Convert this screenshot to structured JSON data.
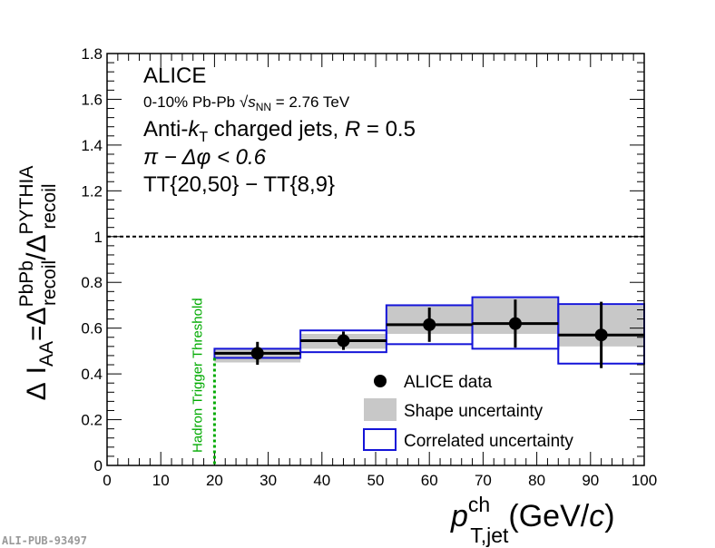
{
  "chart_data": {
    "type": "scatter",
    "title": "",
    "xlabel_main": "p",
    "xlabel_sup": "ch",
    "xlabel_sub": "T,jet",
    "xlabel_unit_open": "(GeV/",
    "xlabel_unit_c": "c",
    "xlabel_unit_close": ")",
    "ylabel": {
      "delta": "Δ",
      "i": "I",
      "aa": "AA",
      "eq": "=Δ",
      "sup1": "PbPb",
      "sub1": "recoil",
      "slash": "/Δ",
      "sup2": "PYTHIA",
      "sub2": "recoil"
    },
    "xlim": [
      0,
      100
    ],
    "ylim": [
      0,
      1.8
    ],
    "x_ticks": [
      "0",
      "10",
      "20",
      "30",
      "40",
      "50",
      "60",
      "70",
      "80",
      "90",
      "100"
    ],
    "y_ticks": [
      "0",
      "0.2",
      "0.4",
      "0.6",
      "0.8",
      "1",
      "1.2",
      "1.4",
      "1.6",
      "1.8"
    ],
    "reference_line_y": 1.0,
    "threshold_x": 20,
    "threshold_label": "Hadron Trigger Threshold",
    "threshold_color": "#00aa00",
    "series": [
      {
        "name": "ALICE data",
        "bins": [
          [
            20,
            36
          ],
          [
            36,
            52
          ],
          [
            52,
            68
          ],
          [
            68,
            84
          ],
          [
            84,
            100
          ]
        ],
        "x": [
          28,
          44,
          60,
          76,
          92
        ],
        "y": [
          0.49,
          0.545,
          0.615,
          0.62,
          0.57
        ],
        "stat_err": [
          0.05,
          0.04,
          0.075,
          0.105,
          0.145
        ],
        "shape_unc": [
          [
            0.45,
            0.51
          ],
          [
            0.51,
            0.575
          ],
          [
            0.575,
            0.7
          ],
          [
            0.575,
            0.73
          ],
          [
            0.52,
            0.7
          ]
        ],
        "corr_unc": [
          [
            0.47,
            0.51
          ],
          [
            0.495,
            0.59
          ],
          [
            0.53,
            0.7
          ],
          [
            0.51,
            0.735
          ],
          [
            0.445,
            0.705
          ]
        ]
      }
    ],
    "annotations": {
      "experiment": "ALICE",
      "system_text": "0-10% Pb-Pb ",
      "sqrt_s": "s",
      "sqrt_sub": "NN",
      "energy": " = 2.76 TeV",
      "algo_prefix": "Anti-",
      "algo_k": "k",
      "algo_ksub": "T",
      "algo_suffix": "  charged jets, ",
      "algo_R": "R",
      "algo_val": " = 0.5",
      "phi_cut": "π − Δφ < 0.6",
      "tt_selection": "TT{20,50} − TT{8,9}"
    },
    "legend": [
      {
        "label": "ALICE data",
        "kind": "marker"
      },
      {
        "label": "Shape uncertainty",
        "kind": "filled-box"
      },
      {
        "label": "Correlated uncertainty",
        "kind": "outline-box"
      }
    ],
    "colors": {
      "shape": "#c8c8c8",
      "correlated": "#1414d8",
      "data": "#000000"
    }
  },
  "footer": {
    "publication_id": "ALI-PUB-93497"
  }
}
